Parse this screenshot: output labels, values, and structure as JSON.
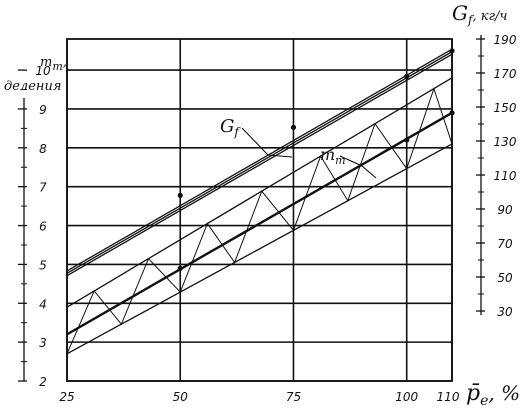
{
  "chart_data": {
    "type": "line",
    "x_axis": {
      "label_main": "p̄",
      "label_sub": "e",
      "label_unit": ", %",
      "ticks": [
        25,
        50,
        75,
        100,
        110
      ],
      "range": [
        25,
        110
      ]
    },
    "y_left": {
      "label_line1": "m",
      "label_sub": "т",
      "label_line1_suffix": ",",
      "label_line2": "деления",
      "ticks": [
        2,
        3,
        4,
        5,
        6,
        7,
        8,
        9,
        10
      ],
      "range": [
        2,
        10.8
      ]
    },
    "y_right": {
      "label_main": "G",
      "label_sub": "f",
      "label_unit": ", кг/ч",
      "ticks": [
        30,
        50,
        70,
        90,
        110,
        130,
        150,
        170,
        190
      ],
      "range": [
        30,
        190
      ]
    },
    "grid": true,
    "series": [
      {
        "name": "Gf",
        "axis": "right",
        "label_main": "G",
        "label_sub": "f",
        "lines": [
          {
            "x": [
              25,
              110
            ],
            "y": [
              53.6,
              184.0
            ]
          },
          {
            "x": [
              25,
              110
            ],
            "y": [
              52.2,
              182.5
            ]
          },
          {
            "x": [
              25,
              110
            ],
            "y": [
              50.8,
              181.0
            ]
          }
        ],
        "markers": [
          {
            "x": 50,
            "y": 98
          },
          {
            "x": 75,
            "y": 138
          },
          {
            "x": 100,
            "y": 168
          },
          {
            "x": 110,
            "y": 183
          }
        ]
      },
      {
        "name": "mт",
        "axis": "left",
        "label_main": "m",
        "label_sub": "т",
        "lines": [
          {
            "x": [
              25,
              110
            ],
            "y": [
              3.2,
              8.9
            ]
          },
          {
            "x": [
              25,
              110
            ],
            "y": [
              3.9,
              9.8
            ]
          },
          {
            "x": [
              25,
              110
            ],
            "y": [
              2.7,
              8.1
            ]
          }
        ],
        "markers": [
          {
            "x": 50,
            "y": 4.9
          },
          {
            "x": 100,
            "y": 8.2
          },
          {
            "x": 110,
            "y": 8.9
          }
        ],
        "band_hatching": true
      }
    ]
  }
}
